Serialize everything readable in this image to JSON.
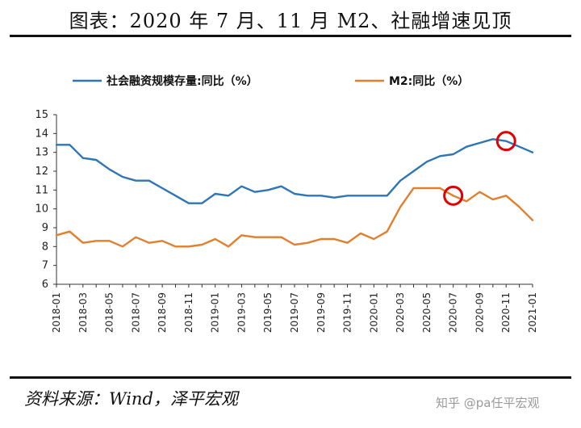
{
  "title": "图表：2020 年 7 月、11 月 M2、社融增速见顶",
  "source": "资料来源：Wind，泽平宏观",
  "watermark": "知乎 @pa任平宏观",
  "chart_data": {
    "type": "line",
    "title": "",
    "xlabel": "",
    "ylabel": "",
    "ylim": [
      6,
      15
    ],
    "yticks": [
      "6",
      "7",
      "8",
      "9",
      "10",
      "11",
      "12",
      "13",
      "14",
      "15"
    ],
    "x": [
      "2018-01",
      "2018-02",
      "2018-03",
      "2018-04",
      "2018-05",
      "2018-06",
      "2018-07",
      "2018-08",
      "2018-09",
      "2018-10",
      "2018-11",
      "2018-12",
      "2019-01",
      "2019-02",
      "2019-03",
      "2019-04",
      "2019-05",
      "2019-06",
      "2019-07",
      "2019-08",
      "2019-09",
      "2019-10",
      "2019-11",
      "2019-12",
      "2020-01",
      "2020-02",
      "2020-03",
      "2020-04",
      "2020-05",
      "2020-06",
      "2020-07",
      "2020-08",
      "2020-09",
      "2020-10",
      "2020-11",
      "2020-12",
      "2021-01"
    ],
    "xtick_labels": [
      "2018-01",
      "2018-03",
      "2018-05",
      "2018-07",
      "2018-09",
      "2018-11",
      "2019-01",
      "2019-03",
      "2019-05",
      "2019-07",
      "2019-09",
      "2019-11",
      "2020-01",
      "2020-03",
      "2020-05",
      "2020-07",
      "2020-09",
      "2020-11",
      "2021-01"
    ],
    "legend_position": "top",
    "series": [
      {
        "name": "社会融资规模存量:同比（%）",
        "color": "#2e75b6",
        "values": [
          13.4,
          13.4,
          12.7,
          12.6,
          12.1,
          11.7,
          11.5,
          11.5,
          11.1,
          10.7,
          10.3,
          10.3,
          10.8,
          10.7,
          11.2,
          10.9,
          11.0,
          11.2,
          10.8,
          10.7,
          10.7,
          10.6,
          10.7,
          10.7,
          10.7,
          10.7,
          11.5,
          12.0,
          12.5,
          12.8,
          12.9,
          13.3,
          13.5,
          13.7,
          13.6,
          13.3,
          13.0
        ]
      },
      {
        "name": "M2:同比（%）",
        "color": "#e07f2e",
        "values": [
          8.6,
          8.8,
          8.2,
          8.3,
          8.3,
          8.0,
          8.5,
          8.2,
          8.3,
          8.0,
          8.0,
          8.1,
          8.4,
          8.0,
          8.6,
          8.5,
          8.5,
          8.5,
          8.1,
          8.2,
          8.4,
          8.4,
          8.2,
          8.7,
          8.4,
          8.8,
          10.1,
          11.1,
          11.1,
          11.1,
          10.7,
          10.4,
          10.9,
          10.5,
          10.7,
          10.1,
          9.4
        ]
      }
    ],
    "annotations": [
      {
        "type": "circle",
        "series": "M2:同比（%）",
        "x": "2020-07",
        "color": "#e00000"
      },
      {
        "type": "circle",
        "series": "社会融资规模存量:同比（%）",
        "x": "2020-11",
        "color": "#e00000"
      }
    ]
  }
}
